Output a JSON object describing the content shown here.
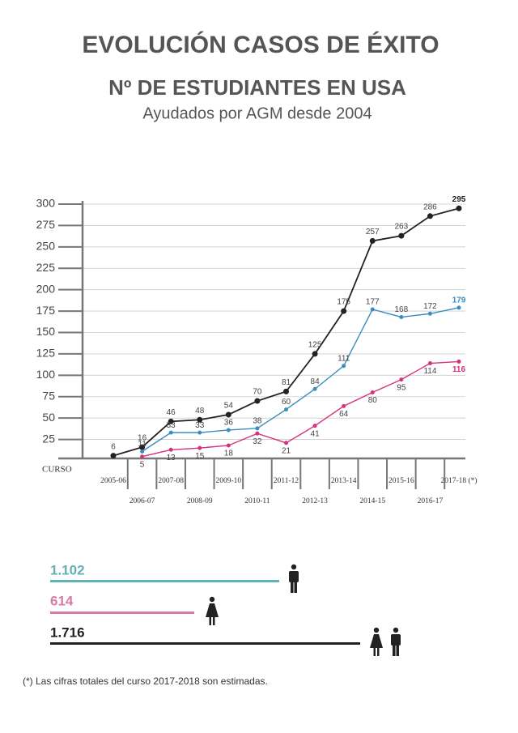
{
  "chart_data": {
    "type": "line",
    "title": "EVOLUCIÓN CASOS DE ÉXITO",
    "subtitle": "Nº DE ESTUDIANTES EN USA",
    "caption": "Ayudados por AGM desde 2004",
    "x_label": "CURSO",
    "categories": [
      "2005-06",
      "2006-07",
      "2007-08",
      "2008-09",
      "2009-10",
      "2010-11",
      "2011-12",
      "2012-13",
      "2013-14",
      "2014-15",
      "2015-16",
      "2016-17",
      "2017-18 (*)"
    ],
    "series": [
      {
        "color": "#222222",
        "values": [
          6,
          16,
          46,
          48,
          54,
          70,
          81,
          125,
          175,
          257,
          263,
          286,
          295
        ]
      },
      {
        "color": "#3a8dc0",
        "values": [
          null,
          11,
          33,
          33,
          36,
          38,
          60,
          84,
          111,
          177,
          168,
          172,
          179
        ]
      },
      {
        "color": "#d6307e",
        "values": [
          null,
          5,
          13,
          15,
          18,
          32,
          21,
          41,
          64,
          80,
          95,
          114,
          116
        ]
      }
    ],
    "ylim": [
      0,
      300
    ],
    "yticks": [
      25,
      50,
      75,
      100,
      125,
      150,
      175,
      200,
      225,
      250,
      275,
      300
    ],
    "grid": true
  },
  "totals": [
    {
      "label": "1.102"
    },
    {
      "label": "614"
    },
    {
      "label": "1.716"
    }
  ],
  "footnote": "(*) Las cifras totales del curso 2017-2018 son estimadas."
}
